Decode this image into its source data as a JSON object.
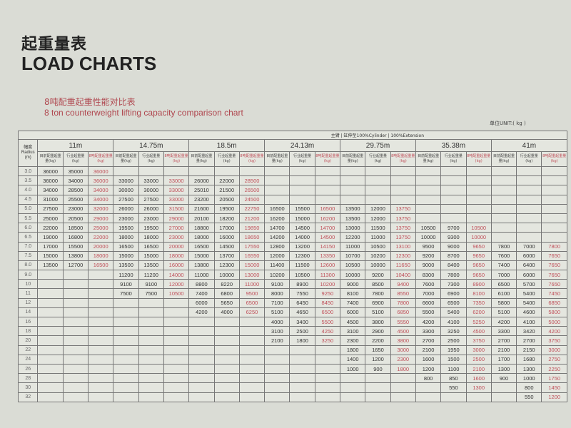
{
  "title_cn": "起重量表",
  "title_en": "LOAD CHARTS",
  "subtitle_cn": "8吨配重起重性能对比表",
  "subtitle_en": "8 ton counterweight lifting capacity comparison chart",
  "unit": "单位UNIT:( kg )",
  "table": {
    "main_header": "主臂 | 缸伸至100%Cylinder | 100%Extension",
    "radius_header": "幅度 Radius (m)",
    "sub_headers": [
      "目前配重起重量(kg)",
      "行业起重量(kg)",
      "8吨配重起重量(kg)"
    ],
    "accent_color": "#c0505a",
    "radii": [
      "3.0",
      "3.5",
      "4.0",
      "4.5",
      "5.0",
      "5.5",
      "6.0",
      "6.5",
      "7.0",
      "7.5",
      "8.0",
      "9.0",
      "10",
      "11",
      "12",
      "14",
      "16",
      "18",
      "20",
      "22",
      "24",
      "26",
      "28",
      "30",
      "32"
    ],
    "booms": [
      {
        "length": "11m",
        "start": "3.0",
        "rows": [
          [
            "36000",
            "35000",
            "36000"
          ],
          [
            "36000",
            "34000",
            "36000"
          ],
          [
            "34000",
            "28500",
            "34000"
          ],
          [
            "31000",
            "25500",
            "34000"
          ],
          [
            "27500",
            "23000",
            "32000"
          ],
          [
            "25000",
            "20500",
            "29000"
          ],
          [
            "22000",
            "18500",
            "25000"
          ],
          [
            "19000",
            "16800",
            "22000"
          ],
          [
            "17000",
            "15500",
            "20000"
          ],
          [
            "15000",
            "13800",
            "18000"
          ],
          [
            "13500",
            "12700",
            "16500"
          ]
        ]
      },
      {
        "length": "14.75m",
        "start": "3.5",
        "rows": [
          [
            "33000",
            "33000",
            "33000"
          ],
          [
            "30000",
            "30000",
            "33000"
          ],
          [
            "27500",
            "27500",
            "33000"
          ],
          [
            "26000",
            "26000",
            "31500"
          ],
          [
            "23000",
            "23000",
            "29000"
          ],
          [
            "19500",
            "19500",
            "27000"
          ],
          [
            "18000",
            "18000",
            "23000"
          ],
          [
            "16500",
            "16500",
            "20000"
          ],
          [
            "15000",
            "15000",
            "18000"
          ],
          [
            "13500",
            "13500",
            "16000"
          ],
          [
            "11200",
            "11200",
            "14000"
          ],
          [
            "9100",
            "9100",
            "12000"
          ],
          [
            "7500",
            "7500",
            "10500"
          ]
        ]
      },
      {
        "length": "18.5m",
        "start": "3.5",
        "rows": [
          [
            "26000",
            "22000",
            "28500"
          ],
          [
            "25010",
            "21500",
            "26500"
          ],
          [
            "23200",
            "20500",
            "24500"
          ],
          [
            "21600",
            "19500",
            "22750"
          ],
          [
            "20100",
            "18200",
            "21200"
          ],
          [
            "18800",
            "17000",
            "19850"
          ],
          [
            "18000",
            "16000",
            "18650"
          ],
          [
            "16500",
            "14500",
            "17550"
          ],
          [
            "15000",
            "13700",
            "16550"
          ],
          [
            "13800",
            "12300",
            "15000"
          ],
          [
            "11000",
            "10000",
            "13000"
          ],
          [
            "8800",
            "8220",
            "11000"
          ],
          [
            "7400",
            "6800",
            "9500"
          ],
          [
            "6000",
            "5650",
            "6500"
          ],
          [
            "4200",
            "4000",
            "6250"
          ]
        ]
      },
      {
        "length": "24.13m",
        "start": "5.0",
        "rows": [
          [
            "16500",
            "15500",
            "16500"
          ],
          [
            "16200",
            "15000",
            "16200"
          ],
          [
            "14700",
            "14500",
            "14700"
          ],
          [
            "14200",
            "14000",
            "14500"
          ],
          [
            "12800",
            "13200",
            "14150"
          ],
          [
            "12000",
            "12300",
            "13350"
          ],
          [
            "11400",
            "11500",
            "12600"
          ],
          [
            "10200",
            "10500",
            "11300"
          ],
          [
            "9100",
            "8900",
            "10200"
          ],
          [
            "8000",
            "7550",
            "9250"
          ],
          [
            "7100",
            "6450",
            "8450"
          ],
          [
            "5100",
            "4650",
            "6500"
          ],
          [
            "4000",
            "3400",
            "5500"
          ],
          [
            "3100",
            "2500",
            "4250"
          ],
          [
            "2100",
            "1800",
            "3250"
          ]
        ]
      },
      {
        "length": "29.75m",
        "start": "5.0",
        "rows": [
          [
            "13500",
            "12000",
            "13750"
          ],
          [
            "13500",
            "12000",
            "13750"
          ],
          [
            "13000",
            "11500",
            "13750"
          ],
          [
            "12200",
            "11000",
            "13750"
          ],
          [
            "11000",
            "10500",
            "13100"
          ],
          [
            "10700",
            "10200",
            "12300"
          ],
          [
            "10500",
            "10000",
            "11650"
          ],
          [
            "10000",
            "9200",
            "10400"
          ],
          [
            "9000",
            "8500",
            "9400"
          ],
          [
            "8100",
            "7800",
            "8550"
          ],
          [
            "7400",
            "6900",
            "7800"
          ],
          [
            "6000",
            "5100",
            "6850"
          ],
          [
            "4500",
            "3800",
            "5550"
          ],
          [
            "3100",
            "2900",
            "4500"
          ],
          [
            "2300",
            "2200",
            "3800"
          ],
          [
            "1800",
            "1650",
            "3000"
          ],
          [
            "1400",
            "1200",
            "2300"
          ],
          [
            "1000",
            "900",
            "1800"
          ]
        ]
      },
      {
        "length": "35.38m",
        "start": "6.0",
        "rows": [
          [
            "10500",
            "9700",
            "10500"
          ],
          [
            "10000",
            "9300",
            "10000"
          ],
          [
            "9500",
            "9000",
            "9650"
          ],
          [
            "9200",
            "8700",
            "9650"
          ],
          [
            "9000",
            "8400",
            "9650"
          ],
          [
            "8300",
            "7800",
            "9650"
          ],
          [
            "7600",
            "7300",
            "8900"
          ],
          [
            "7000",
            "6900",
            "8100"
          ],
          [
            "6600",
            "6500",
            "7350"
          ],
          [
            "5500",
            "5400",
            "6200"
          ],
          [
            "4200",
            "4100",
            "5250"
          ],
          [
            "3300",
            "3250",
            "4500"
          ],
          [
            "2700",
            "2500",
            "3750"
          ],
          [
            "2100",
            "1950",
            "3000"
          ],
          [
            "1600",
            "1500",
            "2500"
          ],
          [
            "1200",
            "1100",
            "2100"
          ],
          [
            "800",
            "850",
            "1600"
          ],
          [
            "",
            "550",
            "1300"
          ]
        ]
      },
      {
        "length": "41m",
        "start": "7.0",
        "rows": [
          [
            "7800",
            "7000",
            "7800"
          ],
          [
            "7600",
            "6000",
            "7650"
          ],
          [
            "7400",
            "6400",
            "7650"
          ],
          [
            "7000",
            "6000",
            "7650"
          ],
          [
            "6500",
            "5700",
            "7650"
          ],
          [
            "6100",
            "5400",
            "7450"
          ],
          [
            "5800",
            "5400",
            "6850"
          ],
          [
            "5100",
            "4600",
            "5800"
          ],
          [
            "4200",
            "4100",
            "5000"
          ],
          [
            "3300",
            "3420",
            "4200"
          ],
          [
            "2700",
            "2700",
            "3750"
          ],
          [
            "2100",
            "2150",
            "3000"
          ],
          [
            "1700",
            "1680",
            "2750"
          ],
          [
            "1300",
            "1300",
            "2250"
          ],
          [
            "900",
            "1000",
            "1750"
          ],
          [
            "",
            "800",
            "1450"
          ],
          [
            "",
            "550",
            "1200"
          ]
        ]
      }
    ]
  }
}
